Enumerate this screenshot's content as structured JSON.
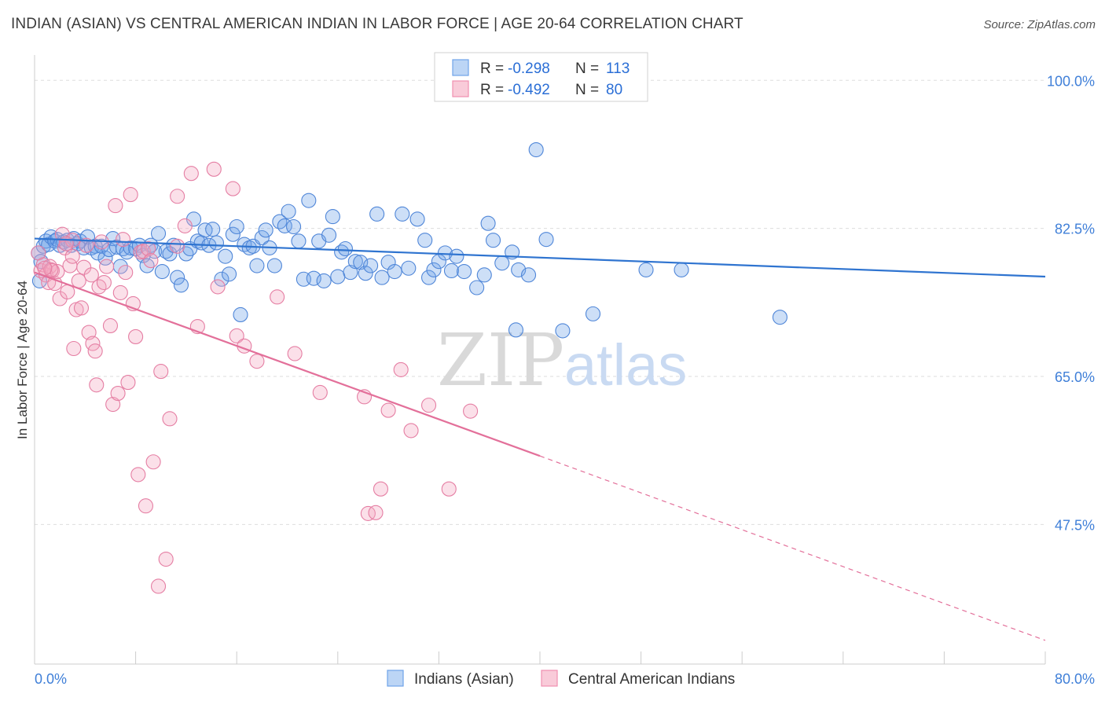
{
  "header": {
    "title": "INDIAN (ASIAN) VS CENTRAL AMERICAN INDIAN IN LABOR FORCE | AGE 20-64 CORRELATION CHART",
    "source": "Source: ZipAtlas.com"
  },
  "watermark": {
    "part1": "ZIP",
    "part2": "atlas"
  },
  "legend": {
    "entries": [
      {
        "r_label": "R =",
        "r_value": "-0.298",
        "n_label": "N =",
        "n_value": "113",
        "color": "#6fa3e8"
      },
      {
        "r_label": "R =",
        "r_value": "-0.492",
        "n_label": "N =",
        "n_value": "80",
        "color": "#f08fb0"
      }
    ]
  },
  "chart_data": {
    "type": "scatter",
    "title": "INDIAN (ASIAN) VS CENTRAL AMERICAN INDIAN IN LABOR FORCE | AGE 20-64 CORRELATION CHART",
    "xlabel": "",
    "ylabel": "In Labor Force | Age 20-64",
    "xlim": [
      0,
      80
    ],
    "ylim": [
      31,
      103
    ],
    "x_tick_labels": [
      "0.0%",
      "80.0%"
    ],
    "y_ticks": [
      47.5,
      65.0,
      82.5,
      100.0
    ],
    "y_tick_labels": [
      "47.5%",
      "65.0%",
      "82.5%",
      "100.0%"
    ],
    "grid": true,
    "legend_placement": "top-center",
    "series": [
      {
        "name": "Indians (Asian)",
        "color": "#6fa3e8",
        "stroke": "#4f86d8",
        "trend": {
          "x": [
            0,
            80
          ],
          "y": [
            81.3,
            76.8
          ],
          "color": "#2f74d0"
        },
        "points": [
          [
            0.3,
            79.6
          ],
          [
            0.5,
            78.6
          ],
          [
            0.7,
            80.4
          ],
          [
            0.9,
            81.0
          ],
          [
            1.1,
            80.6
          ],
          [
            1.3,
            81.5
          ],
          [
            1.6,
            81.0
          ],
          [
            1.8,
            81.2
          ],
          [
            2.0,
            80.5
          ],
          [
            2.3,
            80.9
          ],
          [
            2.6,
            81.1
          ],
          [
            2.9,
            80.5
          ],
          [
            3.1,
            81.3
          ],
          [
            3.4,
            80.7
          ],
          [
            3.6,
            81.0
          ],
          [
            3.9,
            80.2
          ],
          [
            4.2,
            81.5
          ],
          [
            4.5,
            80.2
          ],
          [
            4.8,
            80.4
          ],
          [
            5.0,
            79.6
          ],
          [
            5.3,
            80.4
          ],
          [
            5.6,
            79.0
          ],
          [
            5.9,
            80.0
          ],
          [
            6.2,
            81.3
          ],
          [
            6.5,
            80.3
          ],
          [
            6.8,
            78.0
          ],
          [
            7.0,
            80.1
          ],
          [
            7.3,
            79.7
          ],
          [
            7.6,
            80.2
          ],
          [
            8.0,
            80.1
          ],
          [
            8.3,
            80.5
          ],
          [
            8.6,
            79.3
          ],
          [
            8.9,
            78.1
          ],
          [
            9.2,
            80.5
          ],
          [
            9.5,
            79.8
          ],
          [
            9.8,
            81.9
          ],
          [
            10.1,
            77.4
          ],
          [
            10.4,
            79.8
          ],
          [
            10.7,
            79.5
          ],
          [
            11.0,
            80.5
          ],
          [
            11.3,
            76.7
          ],
          [
            11.6,
            75.8
          ],
          [
            12.0,
            79.5
          ],
          [
            12.3,
            80.1
          ],
          [
            12.6,
            83.6
          ],
          [
            12.9,
            81.0
          ],
          [
            13.2,
            80.8
          ],
          [
            13.5,
            82.3
          ],
          [
            13.8,
            80.5
          ],
          [
            14.1,
            82.4
          ],
          [
            14.4,
            80.8
          ],
          [
            14.8,
            76.5
          ],
          [
            15.1,
            79.2
          ],
          [
            15.4,
            77.1
          ],
          [
            15.7,
            81.8
          ],
          [
            16.0,
            82.7
          ],
          [
            16.3,
            72.3
          ],
          [
            16.6,
            80.6
          ],
          [
            17.0,
            80.2
          ],
          [
            17.3,
            80.4
          ],
          [
            17.6,
            78.1
          ],
          [
            18.0,
            81.4
          ],
          [
            18.3,
            82.3
          ],
          [
            18.6,
            80.2
          ],
          [
            19.0,
            78.1
          ],
          [
            19.4,
            83.3
          ],
          [
            19.8,
            82.8
          ],
          [
            20.1,
            84.5
          ],
          [
            20.5,
            82.7
          ],
          [
            20.9,
            81.0
          ],
          [
            21.3,
            76.5
          ],
          [
            21.7,
            85.8
          ],
          [
            22.1,
            76.6
          ],
          [
            22.5,
            81.0
          ],
          [
            22.9,
            76.3
          ],
          [
            23.3,
            81.7
          ],
          [
            23.6,
            83.9
          ],
          [
            24.0,
            76.8
          ],
          [
            24.3,
            79.7
          ],
          [
            24.6,
            80.1
          ],
          [
            25.0,
            77.3
          ],
          [
            25.4,
            78.6
          ],
          [
            25.8,
            78.5
          ],
          [
            26.2,
            77.2
          ],
          [
            26.6,
            78.1
          ],
          [
            27.1,
            84.2
          ],
          [
            27.5,
            76.7
          ],
          [
            28.0,
            78.5
          ],
          [
            28.5,
            77.4
          ],
          [
            29.1,
            84.2
          ],
          [
            29.6,
            77.8
          ],
          [
            30.3,
            83.6
          ],
          [
            30.9,
            81.1
          ],
          [
            31.2,
            76.7
          ],
          [
            31.6,
            77.6
          ],
          [
            32.0,
            78.6
          ],
          [
            32.5,
            79.6
          ],
          [
            33.0,
            77.5
          ],
          [
            33.4,
            79.2
          ],
          [
            34.0,
            77.4
          ],
          [
            35.0,
            75.5
          ],
          [
            35.6,
            77.0
          ],
          [
            35.9,
            83.1
          ],
          [
            36.3,
            81.1
          ],
          [
            37.0,
            78.4
          ],
          [
            37.8,
            79.7
          ],
          [
            38.1,
            70.5
          ],
          [
            38.3,
            77.6
          ],
          [
            39.1,
            77.0
          ],
          [
            39.7,
            91.8
          ],
          [
            40.5,
            81.2
          ],
          [
            41.8,
            70.4
          ],
          [
            44.2,
            72.4
          ],
          [
            48.4,
            77.6
          ],
          [
            51.2,
            77.6
          ],
          [
            59.0,
            72.0
          ],
          [
            0.4,
            76.3
          ]
        ]
      },
      {
        "name": "Central American Indians",
        "color": "#f4a7c0",
        "stroke": "#e57ea3",
        "trend": {
          "x": [
            0,
            40
          ],
          "y": [
            77.3,
            55.6
          ],
          "dashed_to": [
            80,
            33.8
          ],
          "color": "#e3709a"
        },
        "points": [
          [
            0.3,
            79.6
          ],
          [
            0.5,
            77.5
          ],
          [
            0.7,
            78.2
          ],
          [
            0.9,
            77.0
          ],
          [
            1.1,
            76.1
          ],
          [
            1.2,
            78.0
          ],
          [
            1.4,
            77.5
          ],
          [
            1.6,
            76.0
          ],
          [
            1.8,
            77.4
          ],
          [
            2.0,
            74.2
          ],
          [
            2.2,
            81.8
          ],
          [
            2.4,
            80.2
          ],
          [
            2.6,
            75.0
          ],
          [
            2.8,
            78.1
          ],
          [
            3.0,
            81.1
          ],
          [
            3.1,
            68.3
          ],
          [
            3.3,
            72.9
          ],
          [
            3.5,
            76.3
          ],
          [
            3.7,
            73.1
          ],
          [
            3.9,
            77.9
          ],
          [
            4.1,
            80.5
          ],
          [
            4.3,
            70.2
          ],
          [
            4.5,
            77.0
          ],
          [
            4.6,
            68.9
          ],
          [
            4.8,
            68.0
          ],
          [
            4.9,
            64.0
          ],
          [
            5.1,
            75.6
          ],
          [
            5.3,
            80.9
          ],
          [
            5.5,
            76.1
          ],
          [
            5.7,
            78.0
          ],
          [
            6.0,
            71.0
          ],
          [
            6.2,
            61.7
          ],
          [
            6.4,
            85.2
          ],
          [
            6.6,
            63.0
          ],
          [
            6.8,
            74.9
          ],
          [
            7.0,
            81.2
          ],
          [
            7.2,
            77.3
          ],
          [
            7.4,
            64.3
          ],
          [
            7.6,
            86.5
          ],
          [
            7.8,
            73.6
          ],
          [
            8.0,
            69.7
          ],
          [
            8.2,
            53.4
          ],
          [
            8.4,
            79.7
          ],
          [
            8.6,
            79.8
          ],
          [
            8.8,
            49.7
          ],
          [
            9.0,
            80.1
          ],
          [
            9.2,
            78.7
          ],
          [
            9.4,
            54.9
          ],
          [
            9.8,
            40.2
          ],
          [
            10.0,
            65.6
          ],
          [
            10.4,
            43.4
          ],
          [
            11.3,
            80.4
          ],
          [
            10.7,
            60.0
          ],
          [
            11.3,
            86.3
          ],
          [
            11.9,
            82.8
          ],
          [
            12.4,
            89.0
          ],
          [
            12.9,
            70.9
          ],
          [
            14.2,
            89.5
          ],
          [
            14.5,
            75.6
          ],
          [
            15.7,
            87.2
          ],
          [
            16.0,
            69.8
          ],
          [
            16.6,
            68.6
          ],
          [
            17.6,
            66.8
          ],
          [
            19.2,
            74.4
          ],
          [
            20.6,
            67.7
          ],
          [
            22.6,
            63.1
          ],
          [
            26.1,
            62.6
          ],
          [
            26.4,
            48.8
          ],
          [
            27.0,
            48.9
          ],
          [
            27.4,
            51.7
          ],
          [
            28.0,
            61.0
          ],
          [
            29.0,
            65.8
          ],
          [
            29.8,
            58.6
          ],
          [
            31.2,
            61.6
          ],
          [
            32.8,
            51.7
          ],
          [
            34.5,
            60.9
          ],
          [
            3.0,
            79.2
          ],
          [
            2.5,
            80.7
          ],
          [
            1.3,
            77.6
          ],
          [
            0.8,
            77.8
          ]
        ]
      }
    ]
  }
}
